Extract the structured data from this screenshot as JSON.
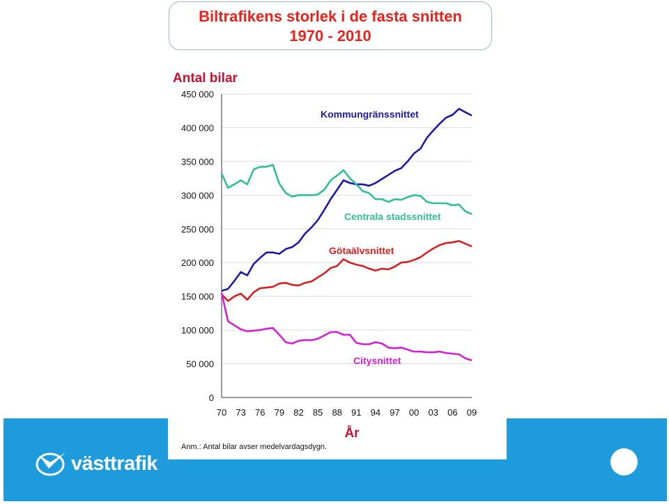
{
  "colors": {
    "accent": "#1d9bdc",
    "title": "#e8231c",
    "axis_title": "#c8102e"
  },
  "brand": {
    "name": "västtrafik",
    "icon": "vasttrafik-logo-icon"
  },
  "chart_data": {
    "type": "line",
    "title": "Biltrafikens storlek i de fasta snitten",
    "subtitle": "1970 - 2010",
    "xlabel": "År",
    "ylabel": "Antal bilar",
    "note": "Anm.: Antal bilar avser medelvardagsdygn.",
    "x_ticks": [
      "70",
      "73",
      "76",
      "79",
      "82",
      "85",
      "88",
      "91",
      "94",
      "97",
      "00",
      "03",
      "06",
      "09"
    ],
    "y_ticks": [
      "0",
      "50 000",
      "100 000",
      "150 000",
      "200 000",
      "250 000",
      "300 000",
      "350 000",
      "400 000",
      "450 000"
    ],
    "ylim": [
      0,
      450000
    ],
    "xlim": [
      1970,
      2009
    ],
    "grid": true,
    "x": [
      1970,
      1971,
      1972,
      1973,
      1974,
      1975,
      1976,
      1977,
      1978,
      1979,
      1980,
      1981,
      1982,
      1983,
      1984,
      1985,
      1986,
      1987,
      1988,
      1989,
      1990,
      1991,
      1992,
      1993,
      1994,
      1995,
      1996,
      1997,
      1998,
      1999,
      2000,
      2001,
      2002,
      2003,
      2004,
      2005,
      2006,
      2007,
      2008,
      2009
    ],
    "series": [
      {
        "name": "Kommungränssnittet",
        "color": "#1a1aa6",
        "label_pos": "upper",
        "values": [
          158000,
          161000,
          173000,
          186000,
          181000,
          198000,
          207000,
          215000,
          215000,
          213000,
          220000,
          223000,
          230000,
          243000,
          252000,
          263000,
          278000,
          294000,
          308000,
          322000,
          318000,
          316000,
          316000,
          314000,
          318000,
          324000,
          330000,
          336000,
          340000,
          350000,
          362000,
          369000,
          385000,
          396000,
          406000,
          415000,
          419000,
          428000,
          423000,
          418000
        ]
      },
      {
        "name": "Centrala stadssnittet",
        "color": "#2dbf95",
        "label_pos": "mid",
        "values": [
          332000,
          311000,
          316000,
          322000,
          316000,
          338000,
          342000,
          342000,
          345000,
          317000,
          303000,
          298000,
          300000,
          300000,
          300000,
          301000,
          308000,
          322000,
          329000,
          337000,
          325000,
          316000,
          306000,
          303000,
          294000,
          294000,
          290000,
          294000,
          293000,
          297000,
          300000,
          299000,
          290000,
          288000,
          288000,
          288000,
          285000,
          286000,
          276000,
          272000
        ]
      },
      {
        "name": "Götaälvsnittet",
        "color": "#d62020",
        "label_pos": "mid",
        "values": [
          153000,
          143000,
          150000,
          154000,
          145000,
          156000,
          162000,
          163000,
          164000,
          169000,
          170000,
          167000,
          166000,
          170000,
          172000,
          178000,
          184000,
          192000,
          195000,
          205000,
          200000,
          197000,
          195000,
          191000,
          188000,
          191000,
          190000,
          194000,
          200000,
          201000,
          204000,
          208000,
          215000,
          221000,
          226000,
          229000,
          230000,
          232000,
          228000,
          224000
        ]
      },
      {
        "name": "Citysnittet",
        "color": "#d41fd4",
        "label_pos": "lower",
        "values": [
          155000,
          113000,
          107000,
          101000,
          98000,
          99000,
          100000,
          102000,
          103000,
          93000,
          82000,
          80000,
          84000,
          85000,
          85000,
          87000,
          92000,
          97000,
          97000,
          93000,
          93000,
          81000,
          79000,
          79000,
          82000,
          80000,
          74000,
          73000,
          74000,
          71000,
          68000,
          68000,
          67000,
          67000,
          68000,
          66000,
          65000,
          64000,
          58000,
          55000
        ]
      }
    ]
  }
}
